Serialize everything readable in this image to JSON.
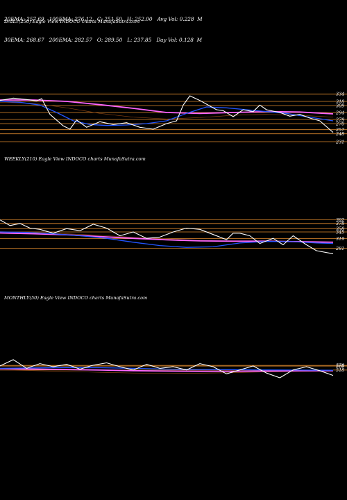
{
  "stats": {
    "row1": [
      "20EMA: 257.69",
      "100EMA: 276.12",
      "C: 251.50",
      "H: 252.00",
      "Avg Vol: 0.228  M"
    ],
    "row2": [
      "30EMA: 268.67",
      "200EMA: 282.57",
      "O: 289.50",
      "L: 237.85",
      "Day Vol: 0.128  M"
    ]
  },
  "chart_data": [
    {
      "type": "line",
      "title": "DAILY(250) Eagle  View  INDOCO charts MunafaSutra.com",
      "ylim": [
        225,
        345
      ],
      "levels": [
        334,
        318,
        309,
        294,
        279,
        270,
        257,
        248,
        231
      ],
      "tick_labels": [
        "334",
        "318",
        "309",
        "294",
        "279",
        "270",
        "257",
        "248",
        "231"
      ],
      "colors": {
        "price": "#ffffff",
        "ema_fast": "#2255ff",
        "ema_slow": "#ff66ff",
        "level_line": "#e08a2e",
        "ema_brown": "#8b4513"
      },
      "series": [
        {
          "key": "price",
          "x": [
            0,
            0.04,
            0.08,
            0.11,
            0.125,
            0.15,
            0.19,
            0.21,
            0.23,
            0.26,
            0.3,
            0.34,
            0.38,
            0.42,
            0.46,
            0.5,
            0.53,
            0.55,
            0.57,
            0.6,
            0.62,
            0.65,
            0.67,
            0.7,
            0.73,
            0.76,
            0.78,
            0.8,
            0.84,
            0.87,
            0.9,
            0.93,
            0.96,
            1.0
          ],
          "y": [
            320,
            325,
            322,
            319,
            324,
            290,
            265,
            258,
            278,
            262,
            274,
            268,
            272,
            262,
            258,
            270,
            276,
            310,
            330,
            320,
            312,
            300,
            298,
            285,
            300,
            296,
            310,
            300,
            294,
            286,
            290,
            282,
            276,
            251
          ]
        },
        {
          "key": "ema_fast",
          "x": [
            0,
            0.06,
            0.12,
            0.17,
            0.22,
            0.27,
            0.32,
            0.38,
            0.44,
            0.5,
            0.56,
            0.62,
            0.68,
            0.74,
            0.8,
            0.86,
            0.92,
            1.0
          ],
          "y": [
            318,
            316,
            310,
            294,
            276,
            268,
            266,
            267,
            270,
            276,
            292,
            306,
            304,
            300,
            296,
            292,
            285,
            276
          ]
        },
        {
          "key": "ema_slow",
          "x": [
            0,
            0.1,
            0.2,
            0.3,
            0.4,
            0.5,
            0.6,
            0.7,
            0.8,
            0.9,
            1.0
          ],
          "y": [
            321,
            321,
            318,
            311,
            303,
            294,
            292,
            294,
            296,
            295,
            291
          ]
        },
        {
          "key": "ema_brown",
          "x": [
            0,
            0.1,
            0.2,
            0.3,
            0.4,
            0.5,
            0.6,
            0.7,
            0.8,
            0.9,
            1.0
          ],
          "y": [
            316,
            314,
            304,
            292,
            284,
            280,
            283,
            288,
            290,
            288,
            284
          ]
        }
      ]
    },
    {
      "type": "line",
      "title": "WEEKLY(210) Eagle  View  INDOCO charts MunafaSutra.com",
      "ylim": [
        215,
        410
      ],
      "levels": [
        392,
        378,
        358,
        345,
        319,
        281
      ],
      "tick_labels": [
        "392",
        "378",
        "358",
        "345",
        "319",
        "281"
      ],
      "colors": {
        "price": "#ffffff",
        "ema_fast": "#2255ff",
        "ema_slow": "#ff66ff",
        "level_line": "#e08a2e",
        "ema_brown": "#8b4513"
      },
      "series": [
        {
          "key": "price",
          "x": [
            0,
            0.03,
            0.06,
            0.09,
            0.12,
            0.16,
            0.2,
            0.24,
            0.28,
            0.32,
            0.36,
            0.4,
            0.44,
            0.48,
            0.52,
            0.56,
            0.6,
            0.64,
            0.68,
            0.7,
            0.72,
            0.75,
            0.78,
            0.82,
            0.85,
            0.88,
            0.92,
            0.95,
            1.0
          ],
          "y": [
            392,
            370,
            378,
            360,
            355,
            340,
            358,
            350,
            375,
            360,
            330,
            345,
            320,
            325,
            345,
            360,
            355,
            335,
            315,
            340,
            340,
            330,
            300,
            320,
            295,
            330,
            295,
            272,
            260
          ]
        },
        {
          "key": "ema_fast",
          "x": [
            0,
            0.08,
            0.16,
            0.24,
            0.32,
            0.4,
            0.48,
            0.56,
            0.64,
            0.72,
            0.8,
            0.88,
            0.95,
            1.0
          ],
          "y": [
            345,
            343,
            338,
            330,
            320,
            305,
            292,
            285,
            287,
            302,
            308,
            307,
            302,
            300
          ]
        },
        {
          "key": "ema_slow",
          "x": [
            0,
            0.1,
            0.2,
            0.3,
            0.4,
            0.5,
            0.6,
            0.7,
            0.8,
            0.9,
            1.0
          ],
          "y": [
            341,
            338,
            334,
            327,
            320,
            314,
            310,
            309,
            309,
            307,
            305
          ]
        },
        {
          "key": "ema_brown",
          "x": [
            0,
            0.1,
            0.2,
            0.3,
            0.4,
            0.5,
            0.6,
            0.7,
            0.8,
            0.9,
            1.0
          ],
          "y": [
            346,
            343,
            338,
            332,
            324,
            318,
            312,
            308,
            307,
            306,
            305
          ]
        }
      ]
    },
    {
      "type": "line",
      "title": "MONTHLY(50) Eagle  View  INDOCO charts MunafaSutra.com",
      "ylim": [
        120,
        720
      ],
      "levels": [
        578,
        569,
        518
      ],
      "tick_labels": [
        "578",
        "569",
        "518"
      ],
      "colors": {
        "price": "#ffffff",
        "ema_fast": "#2255ff",
        "ema_slow": "#ff66ff",
        "level_line": "#e08a2e",
        "ema_brown": "#8b4513"
      },
      "series": [
        {
          "key": "price",
          "x": [
            0,
            0.04,
            0.08,
            0.12,
            0.16,
            0.2,
            0.24,
            0.28,
            0.32,
            0.36,
            0.4,
            0.44,
            0.48,
            0.52,
            0.56,
            0.6,
            0.64,
            0.68,
            0.72,
            0.76,
            0.8,
            0.84,
            0.88,
            0.92,
            0.96,
            1.0
          ],
          "y": [
            570,
            650,
            540,
            600,
            560,
            590,
            530,
            580,
            610,
            560,
            520,
            590,
            540,
            560,
            520,
            600,
            560,
            470,
            520,
            570,
            480,
            420,
            520,
            560,
            510,
            450
          ]
        },
        {
          "key": "ema_fast",
          "x": [
            0,
            0.1,
            0.2,
            0.3,
            0.4,
            0.5,
            0.6,
            0.7,
            0.8,
            0.9,
            1.0
          ],
          "y": [
            540,
            545,
            550,
            548,
            540,
            530,
            525,
            523,
            520,
            518,
            515
          ]
        },
        {
          "key": "ema_slow",
          "x": [
            0,
            0.1,
            0.2,
            0.3,
            0.4,
            0.5,
            0.6,
            0.7,
            0.8,
            0.9,
            1.0
          ],
          "y": [
            535,
            530,
            525,
            518,
            510,
            505,
            502,
            503,
            506,
            508,
            510
          ]
        },
        {
          "key": "ema_brown",
          "x": [
            0,
            0.1,
            0.2,
            0.3,
            0.4,
            0.5,
            0.6,
            0.7,
            0.8,
            0.9,
            1.0
          ],
          "y": [
            520,
            510,
            500,
            490,
            480,
            476,
            478,
            485,
            495,
            503,
            508
          ]
        }
      ]
    }
  ]
}
